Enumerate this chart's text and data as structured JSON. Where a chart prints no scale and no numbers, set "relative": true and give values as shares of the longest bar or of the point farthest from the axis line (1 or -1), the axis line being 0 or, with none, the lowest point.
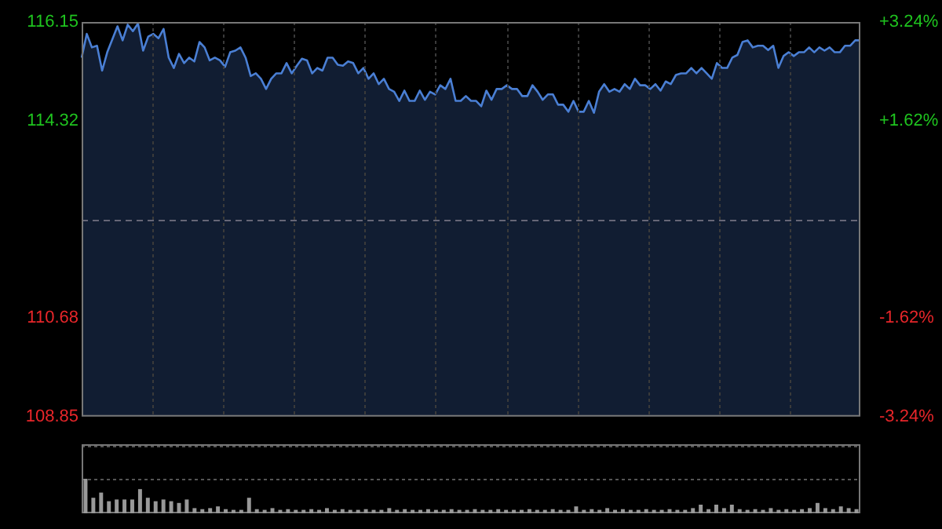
{
  "chart_data": [
    {
      "type": "area",
      "categories": [
        null,
        null,
        null,
        null,
        null,
        null,
        null,
        null,
        null,
        null,
        null,
        null,
        null,
        null,
        null,
        null,
        null,
        null,
        null,
        null,
        null,
        null,
        null,
        null,
        null,
        null,
        null,
        null,
        null,
        null,
        null,
        null,
        null,
        null,
        null,
        null,
        null,
        null,
        null,
        null,
        null,
        null,
        null,
        null,
        null,
        null,
        null,
        null,
        null,
        null,
        null,
        null,
        null,
        null,
        null,
        null,
        null,
        null,
        null,
        null,
        null,
        null,
        null,
        null,
        null,
        null,
        null,
        null,
        null,
        null,
        null,
        null,
        null,
        null,
        null,
        null,
        null,
        null,
        null,
        null,
        null,
        null,
        null,
        null,
        null,
        null,
        null,
        null,
        null,
        null,
        null,
        null,
        null,
        null,
        null,
        null,
        null,
        null,
        null,
        null,
        null,
        null,
        null,
        null,
        null,
        null,
        null,
        null,
        null,
        null,
        null,
        null,
        null,
        null,
        null,
        null,
        null,
        null,
        null,
        null,
        null,
        null,
        null,
        null,
        null,
        null,
        null,
        null,
        null,
        null,
        null,
        null,
        null,
        null,
        null,
        null,
        null,
        null,
        null,
        null,
        null,
        null,
        null,
        null,
        null,
        null,
        null,
        null,
        null,
        null,
        null,
        null,
        null
      ],
      "series": [
        {
          "color": "#4a7fd4",
          "values": [
            115.49,
            115.93,
            115.68,
            115.71,
            115.25,
            115.59,
            115.83,
            116.07,
            115.81,
            116.1,
            115.98,
            116.12,
            115.62,
            115.88,
            115.93,
            115.85,
            116.02,
            115.49,
            115.3,
            115.56,
            115.39,
            115.49,
            115.42,
            115.78,
            115.68,
            115.44,
            115.49,
            115.44,
            115.32,
            115.59,
            115.62,
            115.68,
            115.49,
            115.15,
            115.2,
            115.1,
            114.91,
            115.1,
            115.2,
            115.2,
            115.39,
            115.2,
            115.34,
            115.47,
            115.44,
            115.2,
            115.3,
            115.25,
            115.49,
            115.49,
            115.36,
            115.34,
            115.42,
            115.39,
            115.2,
            115.3,
            115.1,
            115.2,
            115.0,
            115.1,
            114.91,
            114.86,
            114.69,
            114.88,
            114.69,
            114.69,
            114.88,
            114.71,
            114.86,
            114.81,
            114.98,
            114.91,
            115.1,
            114.69,
            114.69,
            114.78,
            114.69,
            114.69,
            114.59,
            114.88,
            114.71,
            114.91,
            114.91,
            114.98,
            114.91,
            114.91,
            114.78,
            114.78,
            114.98,
            114.86,
            114.71,
            114.81,
            114.81,
            114.62,
            114.62,
            114.49,
            114.69,
            114.49,
            114.49,
            114.69,
            114.47,
            114.86,
            115.0,
            114.86,
            114.91,
            114.86,
            115.0,
            114.91,
            115.1,
            114.98,
            114.98,
            114.91,
            115.0,
            114.88,
            115.05,
            115.0,
            115.17,
            115.2,
            115.2,
            115.3,
            115.2,
            115.3,
            115.2,
            115.1,
            115.39,
            115.3,
            115.3,
            115.49,
            115.54,
            115.78,
            115.81,
            115.68,
            115.71,
            115.71,
            115.63,
            115.71,
            115.3,
            115.52,
            115.59,
            115.52,
            115.59,
            115.59,
            115.68,
            115.59,
            115.68,
            115.62,
            115.68,
            115.59,
            115.59,
            115.71,
            115.71,
            115.81,
            115.81
          ]
        }
      ],
      "ylim": [
        108.85,
        116.15
      ],
      "yticks": [
        108.85,
        110.68,
        114.32,
        116.15
      ],
      "y2lim": [
        -3.24,
        3.24
      ],
      "y2ticks": [
        {
          "value": 3.24,
          "label": "+3.24%"
        },
        {
          "value": 1.62,
          "label": "+1.62%"
        },
        {
          "value": -1.62,
          "label": "-1.62%"
        },
        {
          "value": -3.24,
          "label": "-3.24%"
        }
      ],
      "ref_lines": [
        {
          "axis": "y",
          "value": 112.5,
          "line_style": "dashed"
        }
      ],
      "grid": "x",
      "tick_labels": "y"
    },
    {
      "type": "bar",
      "relative": true,
      "categories": [
        null,
        null,
        null,
        null,
        null,
        null,
        null,
        null,
        null,
        null,
        null,
        null,
        null,
        null,
        null,
        null,
        null,
        null,
        null,
        null,
        null,
        null,
        null,
        null,
        null,
        null,
        null,
        null,
        null,
        null,
        null,
        null,
        null,
        null,
        null,
        null,
        null,
        null,
        null,
        null,
        null,
        null,
        null,
        null,
        null,
        null,
        null,
        null,
        null,
        null,
        null,
        null,
        null,
        null,
        null,
        null,
        null,
        null,
        null,
        null,
        null,
        null,
        null,
        null,
        null,
        null,
        null,
        null,
        null,
        null,
        null,
        null,
        null,
        null,
        null,
        null,
        null,
        null,
        null,
        null,
        null,
        null,
        null,
        null,
        null,
        null,
        null,
        null,
        null,
        null,
        null,
        null,
        null,
        null,
        null,
        null,
        null,
        null,
        null,
        null
      ],
      "values": [
        1,
        0.45,
        0.6,
        0.35,
        0.4,
        0.4,
        0.4,
        0.7,
        0.45,
        0.35,
        0.4,
        0.35,
        0.3,
        0.4,
        0.15,
        0.12,
        0.15,
        0.2,
        0.12,
        0.1,
        0.1,
        0.45,
        0.12,
        0.1,
        0.15,
        0.1,
        0.12,
        0.1,
        0.1,
        0.12,
        0.1,
        0.15,
        0.1,
        0.12,
        0.1,
        0.1,
        0.12,
        0.1,
        0.1,
        0.15,
        0.1,
        0.12,
        0.1,
        0.1,
        0.12,
        0.1,
        0.1,
        0.12,
        0.1,
        0.1,
        0.12,
        0.1,
        0.1,
        0.12,
        0.1,
        0.1,
        0.1,
        0.12,
        0.1,
        0.1,
        0.12,
        0.1,
        0.1,
        0.2,
        0.1,
        0.12,
        0.1,
        0.15,
        0.1,
        0.12,
        0.1,
        0.1,
        0.12,
        0.1,
        0.1,
        0.12,
        0.1,
        0.1,
        0.15,
        0.25,
        0.12,
        0.25,
        0.15,
        0.25,
        0.12,
        0.1,
        0.12,
        0.1,
        0.15,
        0.1,
        0.12,
        0.1,
        0.12,
        0.15,
        0.3,
        0.15,
        0.12,
        0.2,
        0.15,
        0.12
      ],
      "color": "#999999",
      "tick_labels": false
    }
  ]
}
